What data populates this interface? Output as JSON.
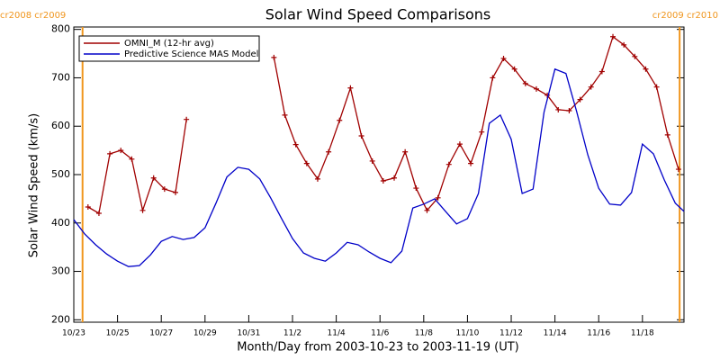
{
  "chart_data": {
    "type": "line",
    "title": "Solar Wind Speed Comparisons",
    "x_label": "Month/Day from 2003-10-23 to 2003-11-19 (UT)",
    "y_label": "Solar Wind Speed (km/s)",
    "xlim": [
      0,
      27.9
    ],
    "ylim": [
      195,
      805
    ],
    "xticks": [
      {
        "value": 0,
        "label": "10/23"
      },
      {
        "value": 2,
        "label": "10/25"
      },
      {
        "value": 4,
        "label": "10/27"
      },
      {
        "value": 6,
        "label": "10/29"
      },
      {
        "value": 8,
        "label": "10/31"
      },
      {
        "value": 10,
        "label": "11/2"
      },
      {
        "value": 12,
        "label": "11/4"
      },
      {
        "value": 14,
        "label": "11/6"
      },
      {
        "value": 16,
        "label": "11/8"
      },
      {
        "value": 18,
        "label": "11/10"
      },
      {
        "value": 20,
        "label": "11/12"
      },
      {
        "value": 22,
        "label": "11/14"
      },
      {
        "value": 24,
        "label": "11/16"
      },
      {
        "value": 26,
        "label": "11/18"
      }
    ],
    "yticks": [
      200,
      300,
      400,
      500,
      600,
      700,
      800
    ],
    "legend": "top-left",
    "annotations": [
      {
        "x": 0.4,
        "text": "cr2008 cr2009",
        "color": "#f0961e"
      },
      {
        "x": 27.7,
        "text": "cr2009 cr2010",
        "color": "#f0961e"
      }
    ],
    "series": [
      {
        "name": "OMNI_M (12-hr avg)",
        "color": "#a00000",
        "markers": true,
        "x": [
          0.65,
          1.15,
          1.65,
          2.15,
          2.65,
          3.15,
          3.65,
          4.15,
          4.65,
          5.15,
          5.65,
          6.15,
          6.65,
          7.15,
          7.65,
          8.15,
          8.65,
          9.15,
          9.65,
          10.15,
          10.65,
          11.15,
          11.65,
          12.15,
          12.65,
          13.15,
          13.65,
          14.15,
          14.65,
          15.15,
          15.65,
          16.15,
          16.65,
          17.15,
          17.65,
          18.15,
          18.65,
          19.15,
          19.65,
          20.15,
          20.65,
          21.15,
          21.65,
          22.15,
          22.65,
          23.15,
          23.65,
          24.15,
          24.65,
          25.15,
          25.65,
          26.15,
          26.65,
          27.15,
          27.65
        ],
        "values": [
          433,
          420,
          543,
          550,
          532,
          426,
          493,
          470,
          463,
          614,
          null,
          null,
          null,
          null,
          null,
          null,
          null,
          742,
          623,
          562,
          523,
          491,
          547,
          612,
          679,
          580,
          528,
          487,
          493,
          547,
          472,
          426,
          452,
          521,
          563,
          523,
          588,
          700,
          740,
          718,
          688,
          677,
          664,
          634,
          632,
          655,
          681,
          713,
          785,
          768,
          744,
          718,
          681,
          582,
          511
        ]
      },
      {
        "name": "Predictive Science MAS Model",
        "color": "#0000c8",
        "markers": false,
        "x": [
          0,
          0.5,
          1,
          1.5,
          2,
          2.5,
          3,
          3.5,
          4,
          4.5,
          5,
          5.5,
          6,
          6.5,
          7,
          7.5,
          8,
          8.5,
          9,
          9.5,
          10,
          10.5,
          11,
          11.5,
          12,
          12.5,
          13,
          13.5,
          14,
          14.5,
          15,
          15.5,
          16,
          16.5,
          17,
          17.5,
          18,
          18.5,
          19,
          19.5,
          20,
          20.5,
          21,
          21.5,
          22,
          22.5,
          23,
          23.5,
          24,
          24.5,
          25,
          25.5,
          26,
          26.5,
          27,
          27.5,
          27.9
        ],
        "values": [
          407,
          377,
          355,
          336,
          321,
          310,
          312,
          334,
          362,
          372,
          366,
          370,
          390,
          441,
          495,
          515,
          511,
          491,
          452,
          409,
          368,
          338,
          327,
          321,
          338,
          360,
          355,
          340,
          327,
          318,
          342,
          431,
          439,
          450,
          424,
          398,
          409,
          461,
          606,
          623,
          573,
          461,
          470,
          629,
          718,
          709,
          629,
          541,
          472,
          439,
          437,
          463,
          563,
          543,
          489,
          441,
          424
        ]
      }
    ]
  }
}
